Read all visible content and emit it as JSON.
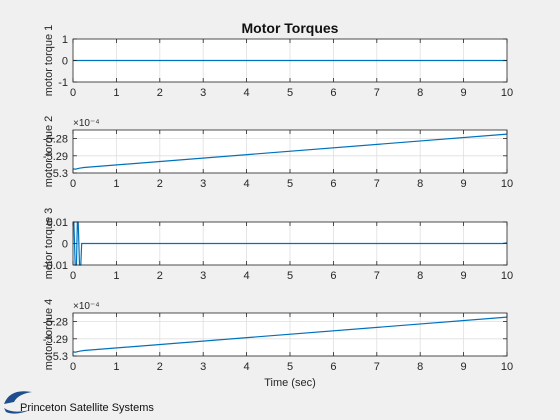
{
  "chart_data": [
    {
      "type": "line",
      "title": "Motor Torques",
      "ylabel": "motor torque 1",
      "xlabel": "",
      "xlim": [
        0,
        10
      ],
      "ylim": [
        -1,
        1
      ],
      "xticks": [
        "0",
        "1",
        "2",
        "3",
        "4",
        "5",
        "6",
        "7",
        "8",
        "9",
        "10"
      ],
      "yticks": [
        {
          "v": 1,
          "label": "1"
        },
        {
          "v": 0,
          "label": "0"
        },
        {
          "v": -1,
          "label": "-1"
        }
      ],
      "exponent": "",
      "grid": true,
      "line_color": "#0072bd",
      "series": [
        {
          "x": [
            0,
            10
          ],
          "y": [
            0,
            0
          ]
        }
      ]
    },
    {
      "type": "line",
      "title": "",
      "ylabel": "motor torque 2",
      "xlabel": "",
      "xlim": [
        0,
        10
      ],
      "ylim": [
        -5.3,
        -5.275
      ],
      "xticks": [
        "0",
        "1",
        "2",
        "3",
        "4",
        "5",
        "6",
        "7",
        "8",
        "9",
        "10"
      ],
      "yticks": [
        {
          "v": -5.28,
          "label": "-5.28"
        },
        {
          "v": -5.29,
          "label": "-5.29"
        },
        {
          "v": -5.3,
          "label": "-5.3"
        }
      ],
      "exponent": "×10⁻⁴",
      "grid": true,
      "line_color": "#0072bd",
      "series": [
        {
          "x": [
            0,
            0.05,
            0.15,
            0.25,
            10
          ],
          "y": [
            -5.2975,
            -5.2978,
            -5.2972,
            -5.2968,
            -5.2774
          ]
        }
      ]
    },
    {
      "type": "line",
      "title": "",
      "ylabel": "motor torque 3",
      "xlabel": "",
      "xlim": [
        0,
        10
      ],
      "ylim": [
        -0.01,
        0.01
      ],
      "xticks": [
        "0",
        "1",
        "2",
        "3",
        "4",
        "5",
        "6",
        "7",
        "8",
        "9",
        "10"
      ],
      "yticks": [
        {
          "v": 0.01,
          "label": "0.01"
        },
        {
          "v": 0,
          "label": "0"
        },
        {
          "v": -0.01,
          "label": "-0.01"
        }
      ],
      "exponent": "",
      "grid": true,
      "line_color": "#0072bd",
      "series": [
        {
          "x": [
            0,
            0.02,
            0.05,
            0.08,
            0.1,
            0.12,
            0.15,
            0.18,
            0.2,
            9.9,
            10
          ],
          "y": [
            0.01,
            0.01,
            -0.01,
            -0.01,
            0.01,
            0.01,
            -0.01,
            -0.01,
            0,
            0,
            0.0003
          ]
        }
      ]
    },
    {
      "type": "line",
      "title": "",
      "ylabel": "motor torque 4",
      "xlabel": "Time (sec)",
      "xlim": [
        0,
        10
      ],
      "ylim": [
        -5.3,
        -5.275
      ],
      "xticks": [
        "0",
        "1",
        "2",
        "3",
        "4",
        "5",
        "6",
        "7",
        "8",
        "9",
        "10"
      ],
      "yticks": [
        {
          "v": -5.28,
          "label": "-5.28"
        },
        {
          "v": -5.29,
          "label": "-5.29"
        },
        {
          "v": -5.3,
          "label": "-5.3"
        }
      ],
      "exponent": "×10⁻⁴",
      "grid": true,
      "line_color": "#0072bd",
      "series": [
        {
          "x": [
            0,
            0.05,
            0.15,
            0.25,
            10
          ],
          "y": [
            -5.2975,
            -5.2978,
            -5.2972,
            -5.2968,
            -5.2774
          ]
        }
      ]
    }
  ],
  "branding": {
    "company": "Princeton Satellite Systems",
    "logo_color": "#1f4e8c"
  }
}
